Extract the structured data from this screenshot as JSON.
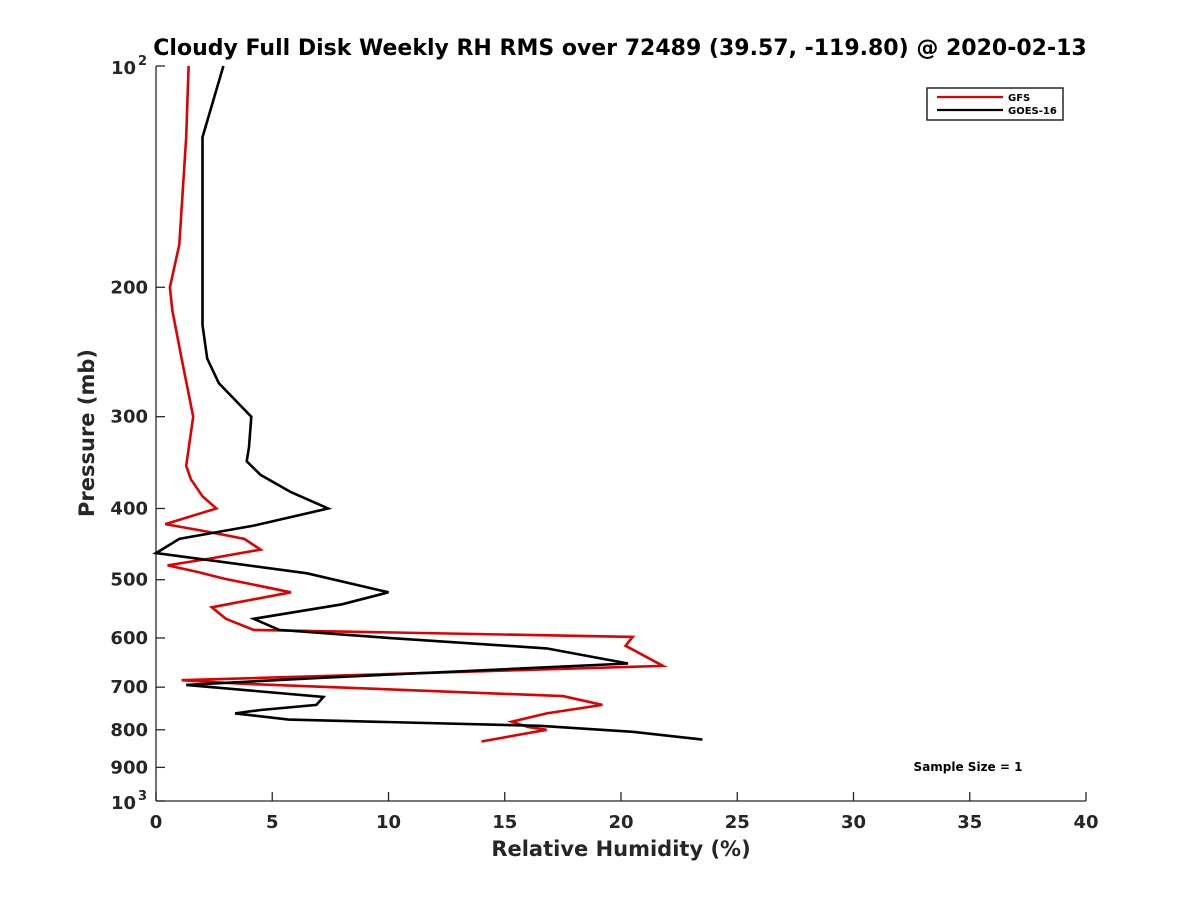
{
  "chart_data": {
    "type": "line",
    "title": "Cloudy Full Disk Weekly RH RMS over 72489 (39.57, -119.80) @ 2020-02-13",
    "xlabel": "Relative Humidity (%)",
    "ylabel": "Pressure (mb)",
    "xlim": [
      0,
      40
    ],
    "ylim": [
      100,
      1000
    ],
    "yscale": "log",
    "y_reversed": true,
    "xticks": [
      0,
      5,
      10,
      15,
      20,
      25,
      30,
      35,
      40
    ],
    "yticks": [
      {
        "value": 100,
        "base": "10",
        "exp": "2"
      },
      {
        "value": 200,
        "label": "200"
      },
      {
        "value": 300,
        "label": "300"
      },
      {
        "value": 400,
        "label": "400"
      },
      {
        "value": 500,
        "label": "500"
      },
      {
        "value": 600,
        "label": "600"
      },
      {
        "value": 700,
        "label": "700"
      },
      {
        "value": 800,
        "label": "800"
      },
      {
        "value": 900,
        "label": "900"
      },
      {
        "value": 1000,
        "base": "10",
        "exp": "3"
      }
    ],
    "grid": false,
    "legend_position": "top-right",
    "annotation": "Sample Size = 1",
    "series": [
      {
        "name": "GFS",
        "color": "#e00000",
        "points": [
          [
            1.4,
            100
          ],
          [
            1.3,
            125
          ],
          [
            1.0,
            175
          ],
          [
            0.6,
            200
          ],
          [
            0.7,
            215
          ],
          [
            1.1,
            250
          ],
          [
            1.6,
            300
          ],
          [
            1.3,
            350
          ],
          [
            1.5,
            365
          ],
          [
            2.0,
            385
          ],
          [
            2.6,
            400
          ],
          [
            0.4,
            420
          ],
          [
            2.2,
            430
          ],
          [
            3.8,
            440
          ],
          [
            4.5,
            455
          ],
          [
            2.3,
            468
          ],
          [
            0.5,
            478
          ],
          [
            1.8,
            488
          ],
          [
            2.9,
            498
          ],
          [
            5.8,
            520
          ],
          [
            2.4,
            545
          ],
          [
            3.0,
            565
          ],
          [
            4.2,
            585
          ],
          [
            20.5,
            598
          ],
          [
            20.2,
            615
          ],
          [
            21.8,
            655
          ],
          [
            1.1,
            685
          ],
          [
            3.5,
            692
          ],
          [
            17.5,
            720
          ],
          [
            19.2,
            740
          ],
          [
            16.8,
            760
          ],
          [
            15.3,
            780
          ],
          [
            16.0,
            793
          ],
          [
            16.8,
            800
          ],
          [
            14.0,
            830
          ]
        ]
      },
      {
        "name": "GOES-16",
        "color": "#000000",
        "points": [
          [
            2.9,
            100
          ],
          [
            2.0,
            125
          ],
          [
            2.0,
            200
          ],
          [
            2.0,
            225
          ],
          [
            2.2,
            250
          ],
          [
            2.7,
            270
          ],
          [
            4.1,
            300
          ],
          [
            4.0,
            330
          ],
          [
            3.9,
            345
          ],
          [
            4.5,
            360
          ],
          [
            5.8,
            380
          ],
          [
            7.4,
            400
          ],
          [
            4.2,
            422
          ],
          [
            1.0,
            440
          ],
          [
            0.0,
            460
          ],
          [
            6.5,
            490
          ],
          [
            10.0,
            520
          ],
          [
            8.0,
            540
          ],
          [
            4.2,
            565
          ],
          [
            5.3,
            585
          ],
          [
            10.0,
            600
          ],
          [
            16.8,
            620
          ],
          [
            20.3,
            650
          ],
          [
            7.0,
            680
          ],
          [
            1.3,
            695
          ],
          [
            7.2,
            722
          ],
          [
            6.9,
            740
          ],
          [
            4.5,
            752
          ],
          [
            3.4,
            760
          ],
          [
            5.7,
            775
          ],
          [
            16.5,
            790
          ],
          [
            20.5,
            805
          ],
          [
            23.5,
            825
          ]
        ]
      }
    ]
  }
}
